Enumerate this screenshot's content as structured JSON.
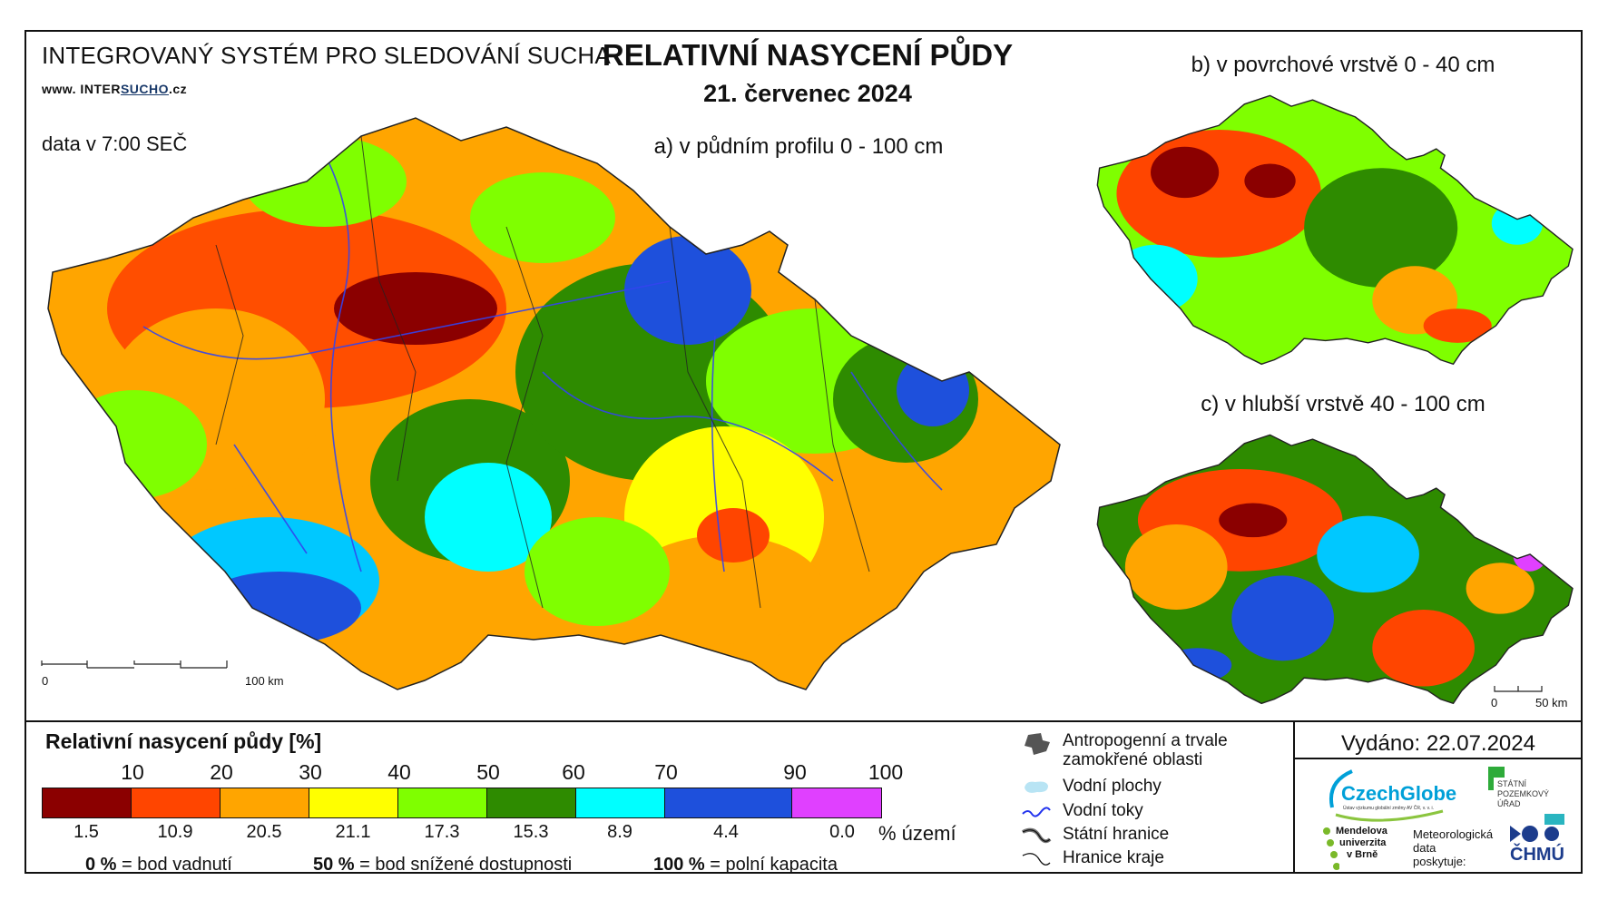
{
  "header": {
    "system_name": "INTEGROVANÝ SYSTÉM PRO SLEDOVÁNÍ SUCHA",
    "website_prefix": "www. INTER",
    "website_highlight": "SUCHO",
    "website_suffix": ".cz",
    "data_time": "data v 7:00 SEČ",
    "title": "RELATIVNÍ NASYCENÍ PŮDY",
    "date": "21. červenec 2024"
  },
  "maps": {
    "a": {
      "label": "a) v půdním profilu 0 - 100 cm",
      "scale_start": "0",
      "scale_end": "100 km"
    },
    "b": {
      "label": "b) v povrchové vrstvě 0 - 40 cm"
    },
    "c": {
      "label": "c) v hlubší vrstvě 40 - 100 cm",
      "scale_start": "0",
      "scale_end": "50 km"
    }
  },
  "legend": {
    "title": "Relativní nasycení půdy [%]",
    "thresholds": [
      "10",
      "20",
      "30",
      "40",
      "50",
      "60",
      "70",
      "90",
      "100"
    ],
    "colors": [
      "#8b0000",
      "#ff4500",
      "#ffa500",
      "#ffff00",
      "#7fff00",
      "#2e8b00",
      "#00ffff",
      "#1e50dc",
      "#e040ff"
    ],
    "area_percent": [
      "1.5",
      "10.9",
      "20.5",
      "21.1",
      "17.3",
      "15.3",
      "8.9",
      "4.4",
      "0.0"
    ],
    "area_unit": "% území",
    "def_0_value": "0 %",
    "def_0_text": "= bod vadnutí",
    "def_50_value": "50 %",
    "def_50_text": "= bod snížené dostupnosti",
    "def_100_value": "100 %",
    "def_100_text": "= polní kapacita"
  },
  "symbols": {
    "anthropogenic": "Antropogenní a trvale zamokřené oblasti",
    "water_bodies": "Vodní plochy",
    "rivers": "Vodní toky",
    "state_border": "Státní hranice",
    "region_border": "Hranice kraje"
  },
  "footer": {
    "issued": "Vydáno: 22.07.2024",
    "czechglobe": "CzechGlobe",
    "czechglobe_sub": "Ústav výzkumu globální změny AV ČR, v. v. i.",
    "spu_line1": "STÁTNÍ",
    "spu_line2": "POZEMKOVÝ",
    "spu_line3": "ÚŘAD",
    "mendel_line1": "Mendelova",
    "mendel_line2": "univerzita",
    "mendel_line3": "v Brně",
    "meteo_line1": "Meteorologická",
    "meteo_line2": "data",
    "meteo_line3": "poskytuje:",
    "chmu": "ČHMÚ"
  }
}
